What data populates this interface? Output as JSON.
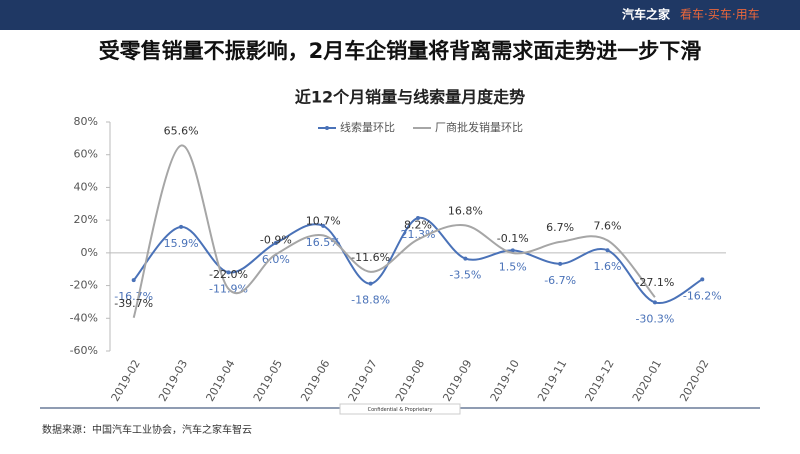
{
  "header": {
    "brand": "汽车之家",
    "slogan": "看车·买车·用车",
    "headline": "受零售销量不振影响，2月车企销量将背离需求面走势进一步下滑"
  },
  "footer": {
    "confidential": "Confidential & Proprietary",
    "source": "数据来源：中国汽车工业协会，汽车之家车智云"
  },
  "chart_data": {
    "type": "line",
    "title": "近12个月销量与线索量月度走势",
    "categories": [
      "2019-02",
      "2019-03",
      "2019-04",
      "2019-05",
      "2019-06",
      "2019-07",
      "2019-08",
      "2019-09",
      "2019-10",
      "2019-11",
      "2019-12",
      "2020-01",
      "2020-02"
    ],
    "series": [
      {
        "name": "线索量环比",
        "color": "#4a72b8",
        "values": [
          -16.7,
          15.9,
          -11.9,
          6.0,
          16.5,
          -18.8,
          21.3,
          -3.5,
          1.5,
          -6.7,
          1.6,
          -30.3,
          -16.2
        ],
        "value_labels": [
          "-16.7%",
          "15.9%",
          "-11.9%",
          "6.0%",
          "16.5%",
          "-18.8%",
          "21.3%",
          "-3.5%",
          "1.5%",
          "-6.7%",
          "1.6%",
          "-30.3%",
          "-16.2%"
        ]
      },
      {
        "name": "厂商批发销量环比",
        "color": "#a6a6a6",
        "values": [
          -39.7,
          65.6,
          -22.0,
          -0.9,
          10.7,
          -11.6,
          8.2,
          16.8,
          -0.1,
          6.7,
          7.6,
          -27.1,
          null
        ],
        "value_labels": [
          "-39.7%",
          "65.6%",
          "-22.0%",
          "-0.9%",
          "10.7%",
          "-11.6%",
          "8.2%",
          "16.8%",
          "-0.1%",
          "6.7%",
          "7.6%",
          "-27.1%",
          null
        ]
      }
    ],
    "ylim": [
      -60,
      80
    ],
    "yticks": [
      {
        "value": -60,
        "label": "-60%"
      },
      {
        "value": -40,
        "label": "-40%"
      },
      {
        "value": -20,
        "label": "-20%"
      },
      {
        "value": 0,
        "label": "0%"
      },
      {
        "value": 20,
        "label": "20%"
      },
      {
        "value": 40,
        "label": "40%"
      },
      {
        "value": 60,
        "label": "60%"
      },
      {
        "value": 80,
        "label": "80%"
      }
    ],
    "legend": "top"
  }
}
